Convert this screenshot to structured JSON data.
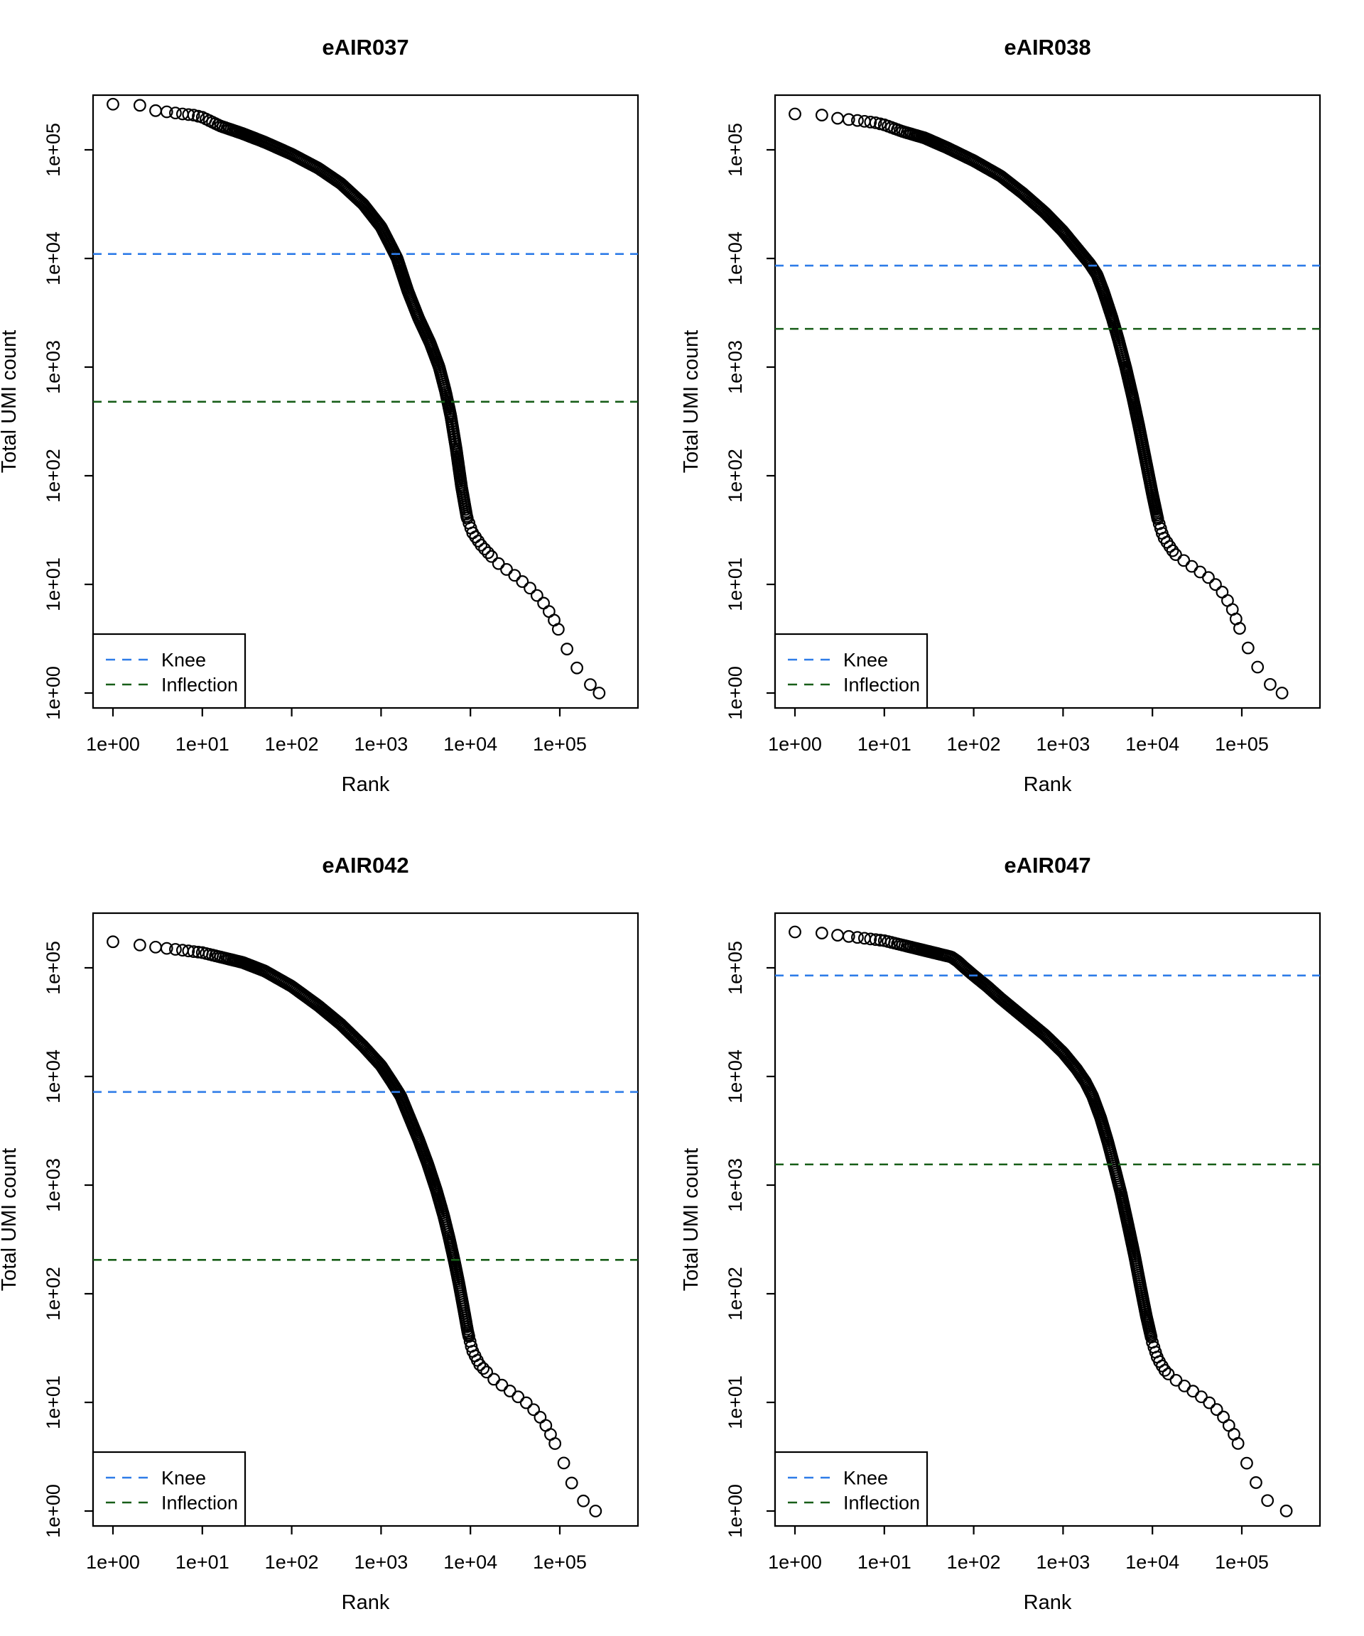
{
  "figure": {
    "background": "#ffffff",
    "n_panels": 4,
    "arrangement": "2x2"
  },
  "colors": {
    "knee": "#2e7ce8",
    "inflection": "#175e18",
    "points": "#000000",
    "axis": "#000000",
    "legend_background": "#ffffff"
  },
  "legend": {
    "position": "bottomleft",
    "items": [
      {
        "label": "Knee",
        "color_key": "knee",
        "line_style": "dashed"
      },
      {
        "label": "Inflection",
        "color_key": "inflection",
        "line_style": "dashed"
      }
    ]
  },
  "chart_data": [
    {
      "type": "scatter",
      "title": "eAIR037",
      "xlabel": "Rank",
      "ylabel": "Total UMI count",
      "x_scale": "log10",
      "y_scale": "log10",
      "xlim": [
        0.6,
        750000
      ],
      "ylim": [
        0.73,
        320000
      ],
      "x_ticks": [
        1,
        10,
        100,
        1000,
        10000,
        100000
      ],
      "x_tick_labels": [
        "1e+00",
        "1e+01",
        "1e+02",
        "1e+03",
        "1e+04",
        "1e+05"
      ],
      "y_ticks": [
        1,
        10,
        100,
        1000,
        10000,
        100000
      ],
      "y_tick_labels": [
        "1e+00",
        "1e+01",
        "1e+02",
        "1e+03",
        "1e+04",
        "1e+05"
      ],
      "grid": false,
      "marker": "open-circle",
      "knee": 11000,
      "inflection": 480,
      "legend_entries": [
        "Knee",
        "Inflection"
      ],
      "curve_log10_rank_count": [
        [
          0.0,
          5.42
        ],
        [
          0.3,
          5.41
        ],
        [
          0.48,
          5.36
        ],
        [
          0.6,
          5.35
        ],
        [
          0.78,
          5.33
        ],
        [
          0.9,
          5.32
        ],
        [
          1.0,
          5.3
        ],
        [
          1.2,
          5.22
        ],
        [
          1.45,
          5.15
        ],
        [
          1.7,
          5.07
        ],
        [
          2.0,
          4.96
        ],
        [
          2.3,
          4.83
        ],
        [
          2.55,
          4.69
        ],
        [
          2.8,
          4.5
        ],
        [
          3.0,
          4.29
        ],
        [
          3.1,
          4.13
        ],
        [
          3.18,
          4.0
        ],
        [
          3.3,
          3.7
        ],
        [
          3.42,
          3.45
        ],
        [
          3.55,
          3.22
        ],
        [
          3.65,
          3.0
        ],
        [
          3.72,
          2.78
        ],
        [
          3.78,
          2.55
        ],
        [
          3.84,
          2.25
        ],
        [
          3.9,
          1.9
        ],
        [
          3.96,
          1.62
        ],
        [
          4.02,
          1.48
        ],
        [
          4.12,
          1.36
        ],
        [
          4.3,
          1.2
        ],
        [
          4.5,
          1.08
        ],
        [
          4.65,
          0.98
        ],
        [
          4.8,
          0.85
        ],
        [
          4.92,
          0.7
        ],
        [
          5.02,
          0.52
        ],
        [
          5.12,
          0.33
        ],
        [
          5.25,
          0.15
        ],
        [
          5.44,
          0.0
        ]
      ]
    },
    {
      "type": "scatter",
      "title": "eAIR038",
      "xlabel": "Rank",
      "ylabel": "Total UMI count",
      "x_scale": "log10",
      "y_scale": "log10",
      "xlim": [
        0.6,
        750000
      ],
      "ylim": [
        0.73,
        320000
      ],
      "x_ticks": [
        1,
        10,
        100,
        1000,
        10000,
        100000
      ],
      "x_tick_labels": [
        "1e+00",
        "1e+01",
        "1e+02",
        "1e+03",
        "1e+04",
        "1e+05"
      ],
      "y_ticks": [
        1,
        10,
        100,
        1000,
        10000,
        100000
      ],
      "y_tick_labels": [
        "1e+00",
        "1e+01",
        "1e+02",
        "1e+03",
        "1e+04",
        "1e+05"
      ],
      "grid": false,
      "marker": "open-circle",
      "knee": 8600,
      "inflection": 2250,
      "legend_entries": [
        "Knee",
        "Inflection"
      ],
      "curve_log10_rank_count": [
        [
          0.0,
          5.33
        ],
        [
          0.3,
          5.32
        ],
        [
          0.48,
          5.29
        ],
        [
          0.7,
          5.27
        ],
        [
          0.9,
          5.25
        ],
        [
          1.0,
          5.23
        ],
        [
          1.2,
          5.17
        ],
        [
          1.45,
          5.11
        ],
        [
          1.7,
          5.02
        ],
        [
          2.0,
          4.9
        ],
        [
          2.3,
          4.76
        ],
        [
          2.55,
          4.6
        ],
        [
          2.8,
          4.42
        ],
        [
          3.0,
          4.25
        ],
        [
          3.15,
          4.1
        ],
        [
          3.3,
          3.95
        ],
        [
          3.38,
          3.85
        ],
        [
          3.45,
          3.7
        ],
        [
          3.55,
          3.45
        ],
        [
          3.62,
          3.25
        ],
        [
          3.7,
          3.0
        ],
        [
          3.78,
          2.72
        ],
        [
          3.85,
          2.45
        ],
        [
          3.93,
          2.12
        ],
        [
          4.0,
          1.83
        ],
        [
          4.06,
          1.6
        ],
        [
          4.12,
          1.44
        ],
        [
          4.25,
          1.28
        ],
        [
          4.45,
          1.16
        ],
        [
          4.65,
          1.05
        ],
        [
          4.78,
          0.93
        ],
        [
          4.88,
          0.8
        ],
        [
          4.95,
          0.65
        ],
        [
          5.02,
          0.5
        ],
        [
          5.12,
          0.33
        ],
        [
          5.25,
          0.12
        ],
        [
          5.45,
          0.0
        ]
      ]
    },
    {
      "type": "scatter",
      "title": "eAIR042",
      "xlabel": "Rank",
      "ylabel": "Total UMI count",
      "x_scale": "log10",
      "y_scale": "log10",
      "xlim": [
        0.6,
        750000
      ],
      "ylim": [
        0.73,
        320000
      ],
      "x_ticks": [
        1,
        10,
        100,
        1000,
        10000,
        100000
      ],
      "x_tick_labels": [
        "1e+00",
        "1e+01",
        "1e+02",
        "1e+03",
        "1e+04",
        "1e+05"
      ],
      "y_ticks": [
        1,
        10,
        100,
        1000,
        10000,
        100000
      ],
      "y_tick_labels": [
        "1e+00",
        "1e+01",
        "1e+02",
        "1e+03",
        "1e+04",
        "1e+05"
      ],
      "grid": false,
      "marker": "open-circle",
      "knee": 7200,
      "inflection": 205,
      "legend_entries": [
        "Knee",
        "Inflection"
      ],
      "curve_log10_rank_count": [
        [
          0.0,
          5.24
        ],
        [
          0.3,
          5.21
        ],
        [
          0.48,
          5.19
        ],
        [
          0.7,
          5.17
        ],
        [
          0.9,
          5.15
        ],
        [
          1.0,
          5.14
        ],
        [
          1.2,
          5.1
        ],
        [
          1.45,
          5.05
        ],
        [
          1.7,
          4.97
        ],
        [
          2.0,
          4.83
        ],
        [
          2.3,
          4.65
        ],
        [
          2.55,
          4.48
        ],
        [
          2.8,
          4.28
        ],
        [
          3.0,
          4.1
        ],
        [
          3.12,
          3.95
        ],
        [
          3.22,
          3.82
        ],
        [
          3.32,
          3.62
        ],
        [
          3.42,
          3.42
        ],
        [
          3.52,
          3.2
        ],
        [
          3.62,
          2.95
        ],
        [
          3.7,
          2.72
        ],
        [
          3.76,
          2.52
        ],
        [
          3.82,
          2.3
        ],
        [
          3.87,
          2.1
        ],
        [
          3.92,
          1.88
        ],
        [
          3.97,
          1.65
        ],
        [
          4.02,
          1.48
        ],
        [
          4.1,
          1.35
        ],
        [
          4.25,
          1.22
        ],
        [
          4.45,
          1.1
        ],
        [
          4.62,
          1.0
        ],
        [
          4.75,
          0.9
        ],
        [
          4.85,
          0.78
        ],
        [
          4.93,
          0.65
        ],
        [
          5.0,
          0.52
        ],
        [
          5.08,
          0.38
        ],
        [
          5.18,
          0.15
        ],
        [
          5.4,
          0.0
        ]
      ]
    },
    {
      "type": "scatter",
      "title": "eAIR047",
      "xlabel": "Rank",
      "ylabel": "Total UMI count",
      "x_scale": "log10",
      "y_scale": "log10",
      "xlim": [
        0.6,
        750000
      ],
      "ylim": [
        0.73,
        320000
      ],
      "x_ticks": [
        1,
        10,
        100,
        1000,
        10000,
        100000
      ],
      "x_tick_labels": [
        "1e+00",
        "1e+01",
        "1e+02",
        "1e+03",
        "1e+04",
        "1e+05"
      ],
      "y_ticks": [
        1,
        10,
        100,
        1000,
        10000,
        100000
      ],
      "y_tick_labels": [
        "1e+00",
        "1e+01",
        "1e+02",
        "1e+03",
        "1e+04",
        "1e+05"
      ],
      "grid": false,
      "marker": "open-circle",
      "knee": 85000,
      "inflection": 1550,
      "legend_entries": [
        "Knee",
        "Inflection"
      ],
      "curve_log10_rank_count": [
        [
          0.0,
          5.33
        ],
        [
          0.3,
          5.32
        ],
        [
          0.48,
          5.3
        ],
        [
          0.7,
          5.28
        ],
        [
          0.9,
          5.26
        ],
        [
          1.0,
          5.25
        ],
        [
          1.2,
          5.21
        ],
        [
          1.45,
          5.16
        ],
        [
          1.6,
          5.13
        ],
        [
          1.75,
          5.1
        ],
        [
          1.82,
          5.06
        ],
        [
          1.9,
          5.0
        ],
        [
          2.0,
          4.93
        ],
        [
          2.15,
          4.83
        ],
        [
          2.3,
          4.72
        ],
        [
          2.55,
          4.55
        ],
        [
          2.8,
          4.38
        ],
        [
          3.0,
          4.22
        ],
        [
          3.15,
          4.07
        ],
        [
          3.25,
          3.95
        ],
        [
          3.33,
          3.82
        ],
        [
          3.42,
          3.62
        ],
        [
          3.5,
          3.4
        ],
        [
          3.57,
          3.18
        ],
        [
          3.65,
          2.92
        ],
        [
          3.73,
          2.62
        ],
        [
          3.8,
          2.35
        ],
        [
          3.87,
          2.05
        ],
        [
          3.93,
          1.8
        ],
        [
          4.0,
          1.55
        ],
        [
          4.06,
          1.4
        ],
        [
          4.15,
          1.28
        ],
        [
          4.3,
          1.18
        ],
        [
          4.5,
          1.08
        ],
        [
          4.68,
          0.97
        ],
        [
          4.8,
          0.86
        ],
        [
          4.9,
          0.73
        ],
        [
          4.98,
          0.58
        ],
        [
          5.05,
          0.45
        ],
        [
          5.13,
          0.3
        ],
        [
          5.28,
          0.1
        ],
        [
          5.5,
          0.0
        ]
      ]
    }
  ]
}
